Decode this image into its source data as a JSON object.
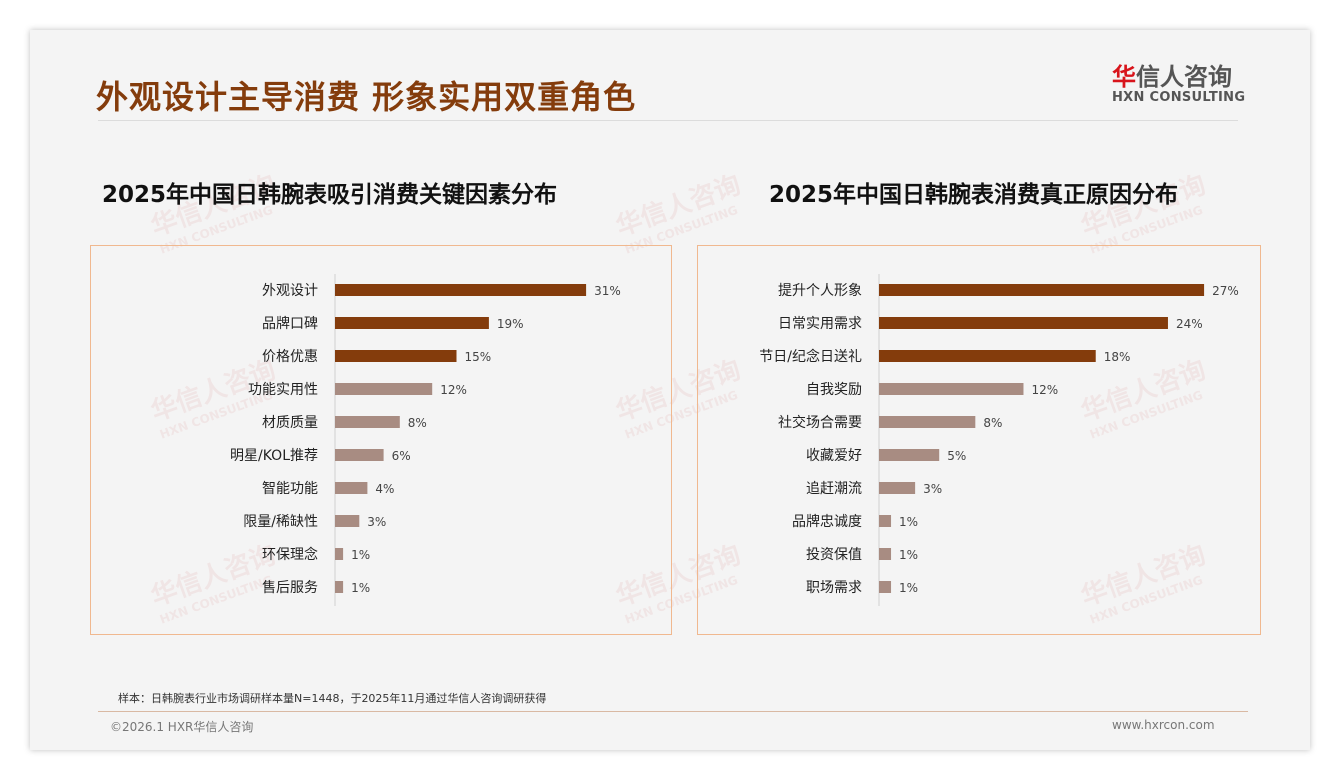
{
  "header": {
    "title": "外观设计主导消费 形象实用双重角色",
    "logo_cn_first": "华",
    "logo_cn_rest": "信人咨询",
    "logo_en": "HXN CONSULTING"
  },
  "watermark": {
    "cn": "华信人咨询",
    "en": "HXN CONSULTING"
  },
  "colors": {
    "accent": "#843c0c",
    "bar_dark": "#843c0c",
    "bar_light": "#a88c82",
    "border": "#f0b88f"
  },
  "chart_data": [
    {
      "type": "bar",
      "orientation": "horizontal",
      "title": "2025年中国日韩腕表吸引消费关键因素分布",
      "categories": [
        "外观设计",
        "品牌口碑",
        "价格优惠",
        "功能实用性",
        "材质质量",
        "明星/KOL推荐",
        "智能功能",
        "限量/稀缺性",
        "环保理念",
        "售后服务"
      ],
      "values": [
        31,
        19,
        15,
        12,
        8,
        6,
        4,
        3,
        1,
        1
      ],
      "labels": [
        "31%",
        "19%",
        "15%",
        "12%",
        "8%",
        "6%",
        "4%",
        "3%",
        "1%",
        "1%"
      ],
      "highlight_top": 3,
      "unit": "%"
    },
    {
      "type": "bar",
      "orientation": "horizontal",
      "title": "2025年中国日韩腕表消费真正原因分布",
      "categories": [
        "提升个人形象",
        "日常实用需求",
        "节日/纪念日送礼",
        "自我奖励",
        "社交场合需要",
        "收藏爱好",
        "追赶潮流",
        "品牌忠诚度",
        "投资保值",
        "职场需求"
      ],
      "values": [
        27,
        24,
        18,
        12,
        8,
        5,
        3,
        1,
        1,
        1
      ],
      "labels": [
        "27%",
        "24%",
        "18%",
        "12%",
        "8%",
        "5%",
        "3%",
        "1%",
        "1%",
        "1%"
      ],
      "highlight_top": 3,
      "unit": "%"
    }
  ],
  "footer": {
    "note": "样本：日韩腕表行业市场调研样本量N=1448，于2025年11月通过华信人咨询调研获得",
    "copyright": "©2026.1 HXR华信人咨询",
    "website": "www.hxrcon.com"
  }
}
